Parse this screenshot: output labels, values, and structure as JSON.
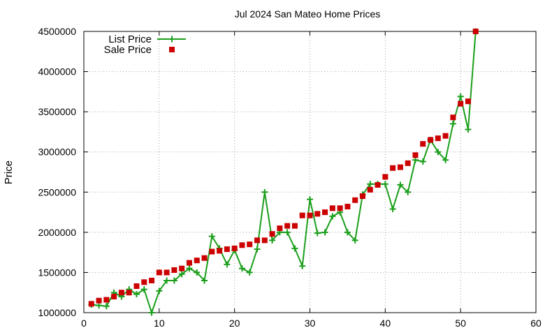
{
  "chart_data": {
    "type": "line",
    "title": "Jul 2024 San Mateo Home Prices",
    "xlabel": "",
    "ylabel": "Price",
    "xlim": [
      0,
      60
    ],
    "ylim": [
      1000000,
      4500000
    ],
    "xticks": [
      "0",
      "10",
      "20",
      "30",
      "40",
      "50",
      "60"
    ],
    "yticks": [
      "1000000",
      "1500000",
      "2000000",
      "2500000",
      "3000000",
      "3500000",
      "4000000",
      "4500000"
    ],
    "grid": true,
    "legend_position": "top-left",
    "series": [
      {
        "name": "List Price",
        "style": "line-plus",
        "color": "#1a9e1a",
        "x": [
          1,
          2,
          3,
          4,
          5,
          6,
          7,
          8,
          9,
          10,
          11,
          12,
          13,
          14,
          15,
          16,
          17,
          18,
          19,
          20,
          21,
          22,
          23,
          24,
          25,
          26,
          27,
          28,
          29,
          30,
          31,
          32,
          33,
          34,
          35,
          36,
          37,
          38,
          39,
          40,
          41,
          42,
          43,
          44,
          45,
          46,
          47,
          48,
          49,
          50,
          51,
          52
        ],
        "y": [
          1100000,
          1090000,
          1080000,
          1250000,
          1200000,
          1290000,
          1230000,
          1290000,
          1000000,
          1270000,
          1400000,
          1400000,
          1480000,
          1550000,
          1500000,
          1400000,
          1950000,
          1800000,
          1600000,
          1780000,
          1550000,
          1500000,
          1790000,
          2500000,
          1900000,
          2000000,
          2000000,
          1800000,
          1580000,
          2410000,
          1990000,
          2000000,
          2200000,
          2250000,
          2000000,
          1900000,
          2470000,
          2600000,
          2600000,
          2600000,
          2290000,
          2590000,
          2500000,
          2900000,
          2880000,
          3150000,
          3000000,
          2900000,
          3350000,
          3690000,
          3280000,
          4500000
        ]
      },
      {
        "name": "Sale Price",
        "style": "square",
        "color": "#cc0000",
        "x": [
          1,
          2,
          3,
          4,
          5,
          6,
          7,
          8,
          9,
          10,
          11,
          12,
          13,
          14,
          15,
          16,
          17,
          18,
          19,
          20,
          21,
          22,
          23,
          24,
          25,
          26,
          27,
          28,
          29,
          30,
          31,
          32,
          33,
          34,
          35,
          36,
          37,
          38,
          39,
          40,
          41,
          42,
          43,
          44,
          45,
          46,
          47,
          48,
          49,
          50,
          51,
          52
        ],
        "y": [
          1110000,
          1150000,
          1160000,
          1200000,
          1250000,
          1250000,
          1330000,
          1380000,
          1400000,
          1500000,
          1500000,
          1530000,
          1550000,
          1620000,
          1650000,
          1680000,
          1760000,
          1770000,
          1790000,
          1800000,
          1840000,
          1850000,
          1900000,
          1900000,
          1980000,
          2050000,
          2080000,
          2080000,
          2210000,
          2210000,
          2230000,
          2250000,
          2300000,
          2300000,
          2320000,
          2400000,
          2450000,
          2530000,
          2590000,
          2690000,
          2800000,
          2810000,
          2860000,
          2960000,
          3100000,
          3150000,
          3170000,
          3200000,
          3430000,
          3600000,
          3630000,
          4500000
        ]
      }
    ]
  }
}
